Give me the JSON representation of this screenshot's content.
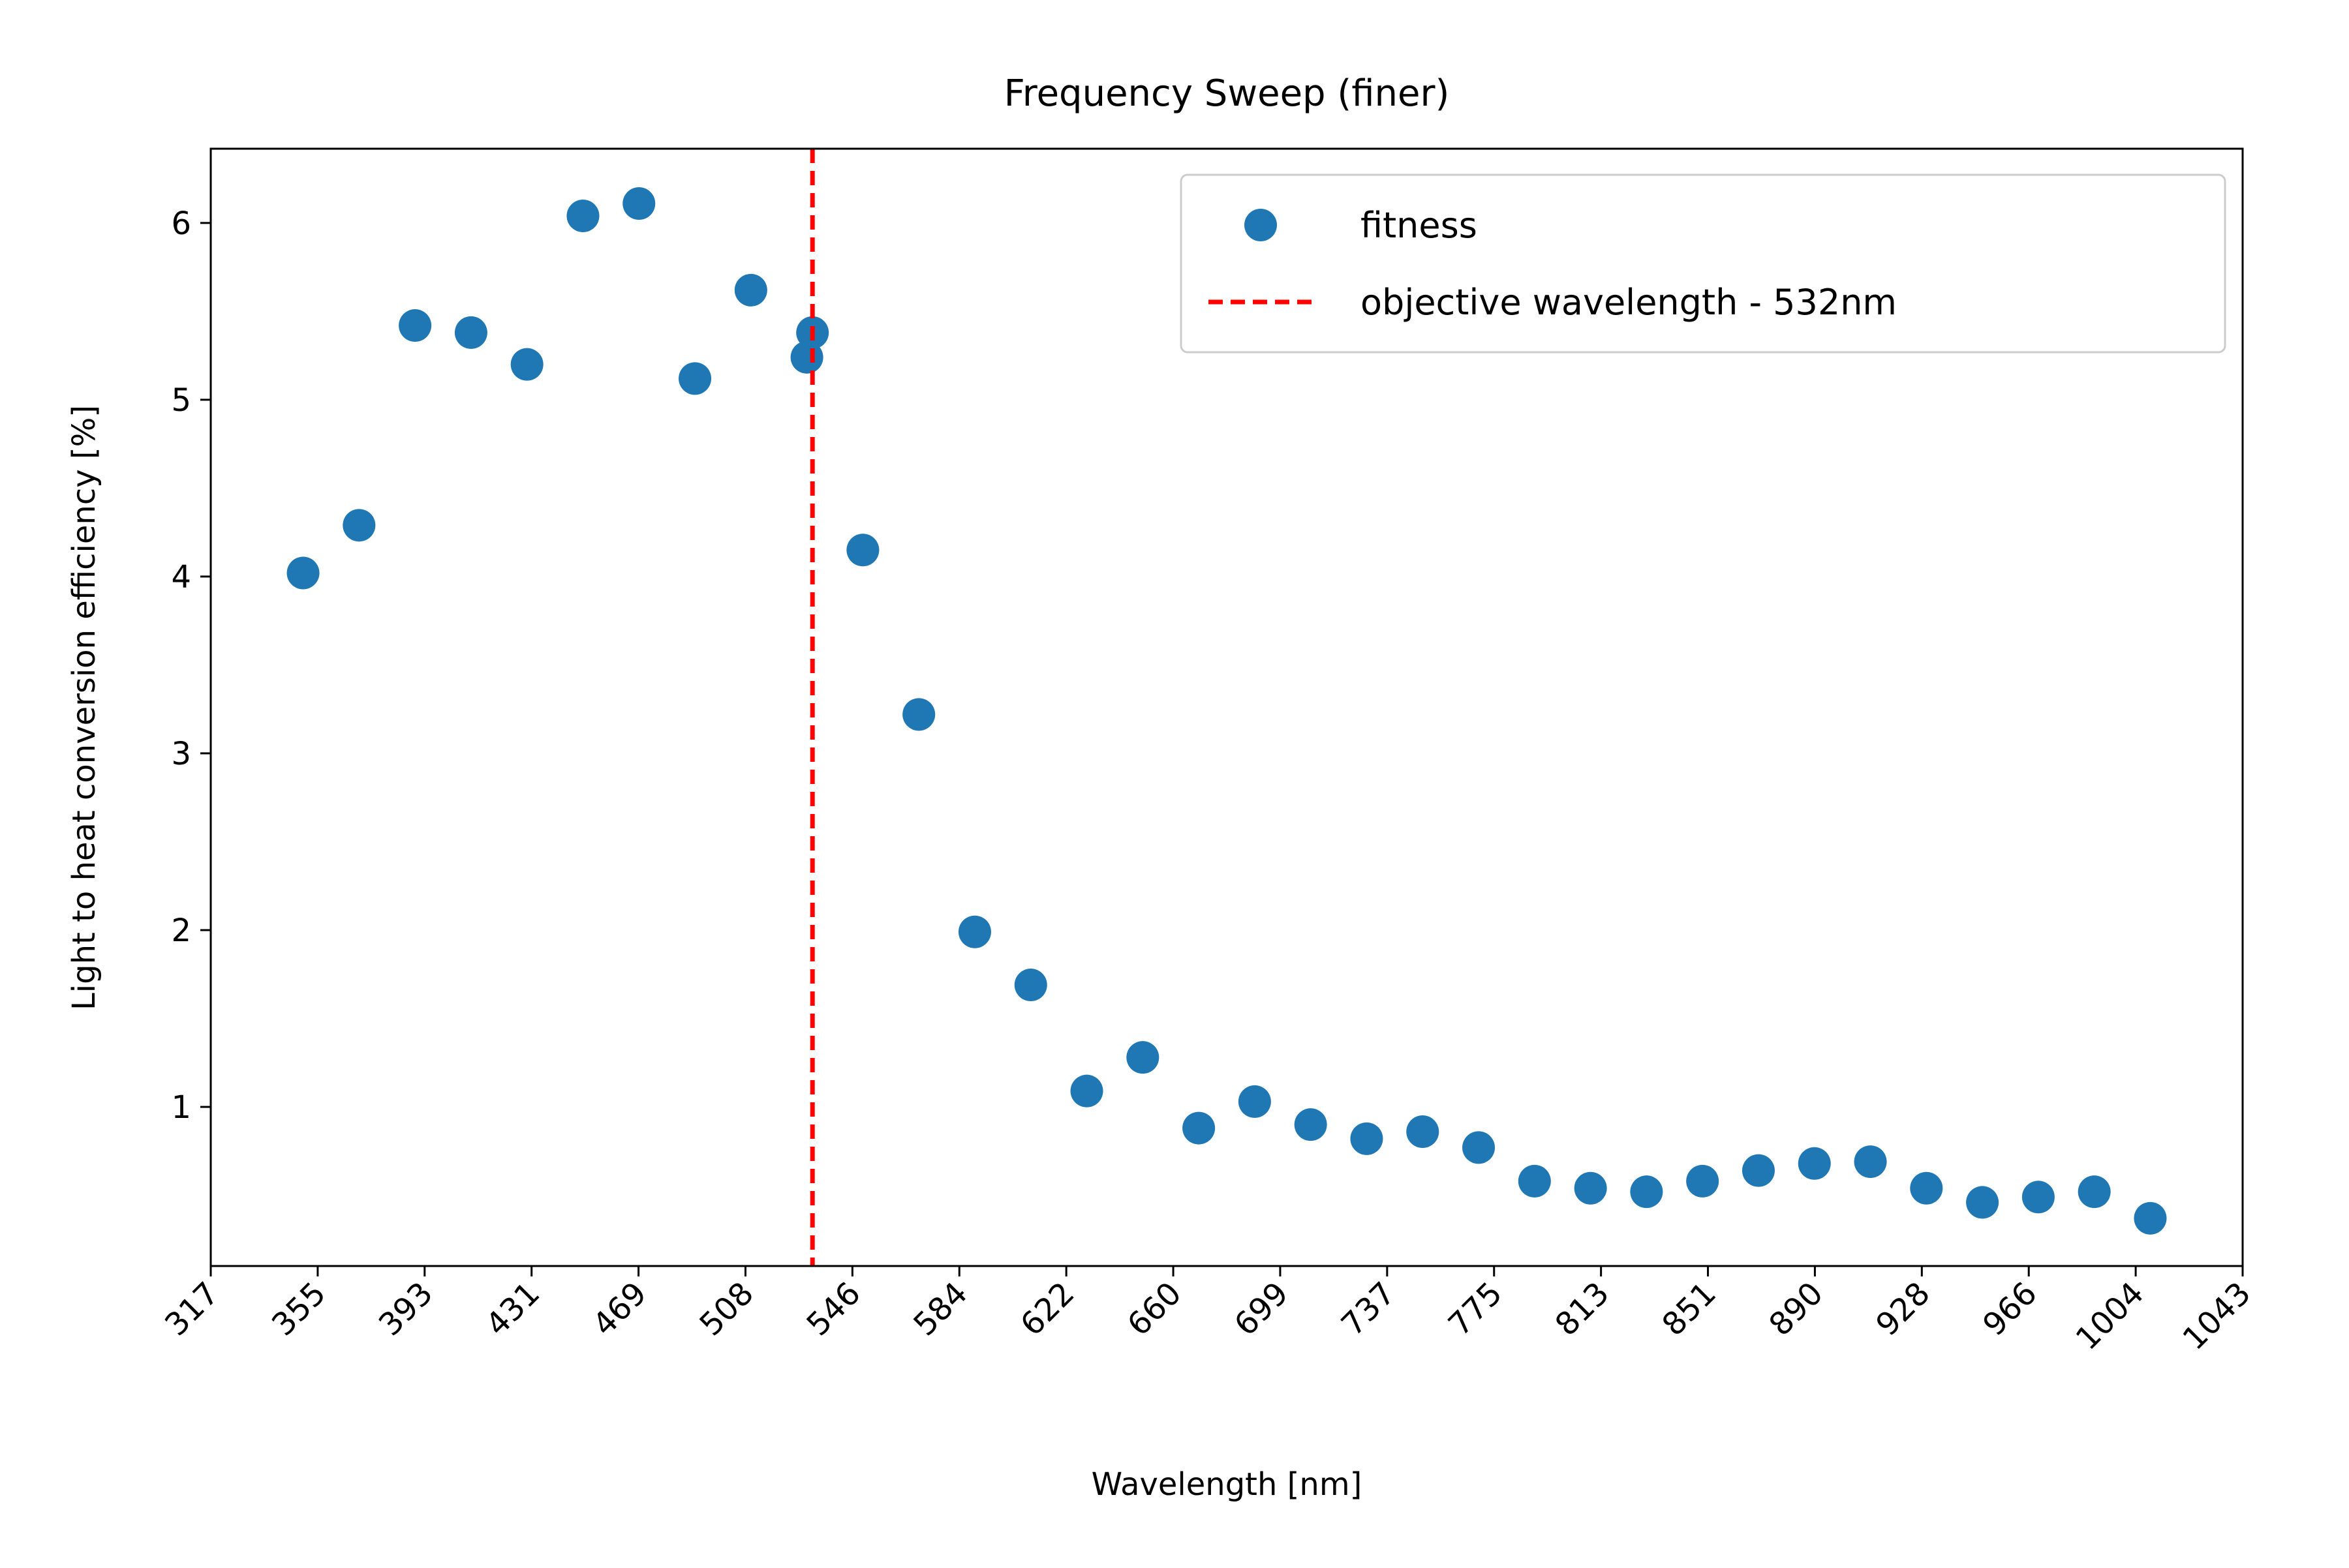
{
  "chart_data": {
    "type": "scatter",
    "title": "Frequency Sweep (finer)",
    "xlabel": "Wavelength [nm]",
    "ylabel": "Light to heat conversion efficiency [%]",
    "xlim": [
      317,
      1043
    ],
    "ylim": [
      0.1,
      6.42
    ],
    "x_ticks": [
      "317",
      "355",
      "393",
      "431",
      "469",
      "508",
      "546",
      "584",
      "622",
      "660",
      "699",
      "737",
      "775",
      "813",
      "851",
      "890",
      "928",
      "966",
      "1004",
      "1043"
    ],
    "y_ticks": [
      "1",
      "2",
      "3",
      "4",
      "5",
      "6"
    ],
    "grid": false,
    "legend_position": "upper right",
    "series": [
      {
        "name": "fitness",
        "kind": "scatter",
        "color": "#1f77b4",
        "points": [
          {
            "x": 350,
            "y": 4.02
          },
          {
            "x": 370,
            "y": 4.29
          },
          {
            "x": 390,
            "y": 5.42
          },
          {
            "x": 410,
            "y": 5.38
          },
          {
            "x": 430,
            "y": 5.2
          },
          {
            "x": 450,
            "y": 6.04
          },
          {
            "x": 470,
            "y": 6.11
          },
          {
            "x": 490,
            "y": 5.12
          },
          {
            "x": 510,
            "y": 5.62
          },
          {
            "x": 530,
            "y": 5.24
          },
          {
            "x": 532,
            "y": 5.38
          },
          {
            "x": 550,
            "y": 4.15
          },
          {
            "x": 570,
            "y": 3.22
          },
          {
            "x": 590,
            "y": 1.99
          },
          {
            "x": 610,
            "y": 1.69
          },
          {
            "x": 630,
            "y": 1.09
          },
          {
            "x": 650,
            "y": 1.28
          },
          {
            "x": 670,
            "y": 0.88
          },
          {
            "x": 690,
            "y": 1.03
          },
          {
            "x": 710,
            "y": 0.9
          },
          {
            "x": 730,
            "y": 0.82
          },
          {
            "x": 750,
            "y": 0.86
          },
          {
            "x": 770,
            "y": 0.77
          },
          {
            "x": 790,
            "y": 0.58
          },
          {
            "x": 810,
            "y": 0.54
          },
          {
            "x": 830,
            "y": 0.52
          },
          {
            "x": 850,
            "y": 0.58
          },
          {
            "x": 870,
            "y": 0.64
          },
          {
            "x": 890,
            "y": 0.68
          },
          {
            "x": 910,
            "y": 0.69
          },
          {
            "x": 930,
            "y": 0.54
          },
          {
            "x": 950,
            "y": 0.46
          },
          {
            "x": 970,
            "y": 0.49
          },
          {
            "x": 990,
            "y": 0.52
          },
          {
            "x": 1010,
            "y": 0.37
          }
        ]
      },
      {
        "name": "objective wavelength - 532nm",
        "kind": "vline",
        "x": 532,
        "color": "#ff0000",
        "linestyle": "dashed"
      }
    ]
  }
}
